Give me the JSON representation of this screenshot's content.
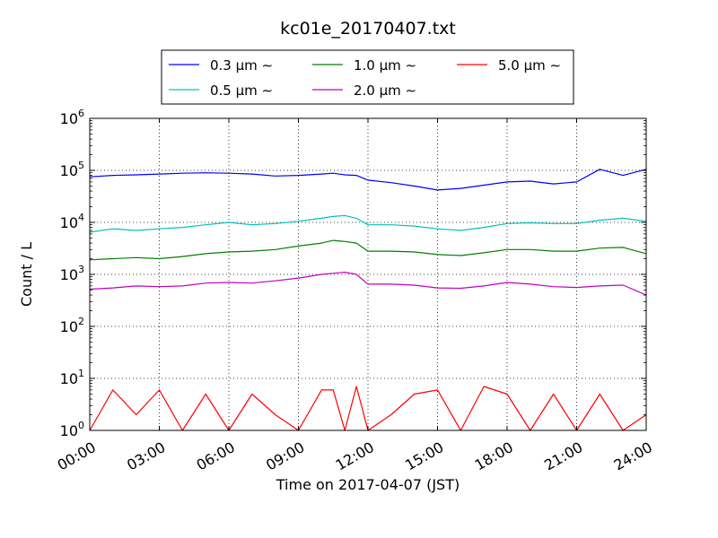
{
  "chart_data": {
    "type": "line",
    "title": "kc01e_20170407.txt",
    "xlabel": "Time on 2017-04-07 (JST)",
    "ylabel": "Count / L",
    "yscale": "log",
    "ylim": [
      1,
      1000000
    ],
    "xlim_hours": [
      0,
      24
    ],
    "grid": true,
    "legend_placement": "top-center",
    "x_ticks": [
      "00:00",
      "03:00",
      "06:00",
      "09:00",
      "12:00",
      "15:00",
      "18:00",
      "21:00",
      "24:00"
    ],
    "y_ticks": [
      {
        "base": "10",
        "exp": "0"
      },
      {
        "base": "10",
        "exp": "1"
      },
      {
        "base": "10",
        "exp": "2"
      },
      {
        "base": "10",
        "exp": "3"
      },
      {
        "base": "10",
        "exp": "4"
      },
      {
        "base": "10",
        "exp": "5"
      },
      {
        "base": "10",
        "exp": "6"
      }
    ],
    "x_hours": [
      0,
      1,
      2,
      3,
      4,
      5,
      6,
      7,
      8,
      9,
      10,
      10.5,
      11,
      11.5,
      12,
      13,
      14,
      15,
      16,
      17,
      18,
      19,
      20,
      21,
      22,
      23,
      24
    ],
    "series": [
      {
        "name": "0.3 μm ∼",
        "color": "#0000ff",
        "values": [
          75000,
          80000,
          82000,
          85000,
          88000,
          90000,
          88000,
          85000,
          78000,
          80000,
          85000,
          88000,
          82000,
          80000,
          65000,
          58000,
          50000,
          42000,
          45000,
          52000,
          60000,
          62000,
          55000,
          60000,
          105000,
          80000,
          105000
        ]
      },
      {
        "name": "0.5 μm ∼",
        "color": "#00bfbf",
        "values": [
          6500,
          7500,
          7000,
          7500,
          8000,
          9000,
          10000,
          9000,
          9500,
          10500,
          12000,
          13000,
          13500,
          12000,
          9000,
          9000,
          8500,
          7500,
          7000,
          8000,
          9500,
          9800,
          9500,
          9500,
          11000,
          12000,
          10500
        ]
      },
      {
        "name": "1.0 μm ∼",
        "color": "#008000",
        "values": [
          1900,
          2000,
          2100,
          2000,
          2200,
          2500,
          2700,
          2800,
          3000,
          3500,
          4000,
          4500,
          4300,
          4000,
          2800,
          2800,
          2700,
          2400,
          2300,
          2600,
          3000,
          3000,
          2800,
          2800,
          3200,
          3300,
          2500
        ]
      },
      {
        "name": "2.0 μm ∼",
        "color": "#bf00bf",
        "values": [
          520,
          550,
          600,
          580,
          600,
          680,
          700,
          680,
          750,
          850,
          1000,
          1050,
          1100,
          1000,
          650,
          650,
          620,
          550,
          540,
          600,
          700,
          650,
          580,
          560,
          600,
          620,
          400
        ]
      },
      {
        "name": "5.0 μm ∼",
        "color": "#ff0000",
        "values": [
          1,
          6,
          2,
          6,
          1,
          5,
          1,
          5,
          2,
          1,
          6,
          6,
          1,
          7,
          1,
          2,
          5,
          6,
          1,
          7,
          5,
          1,
          5,
          1,
          5,
          1,
          2
        ]
      }
    ]
  }
}
